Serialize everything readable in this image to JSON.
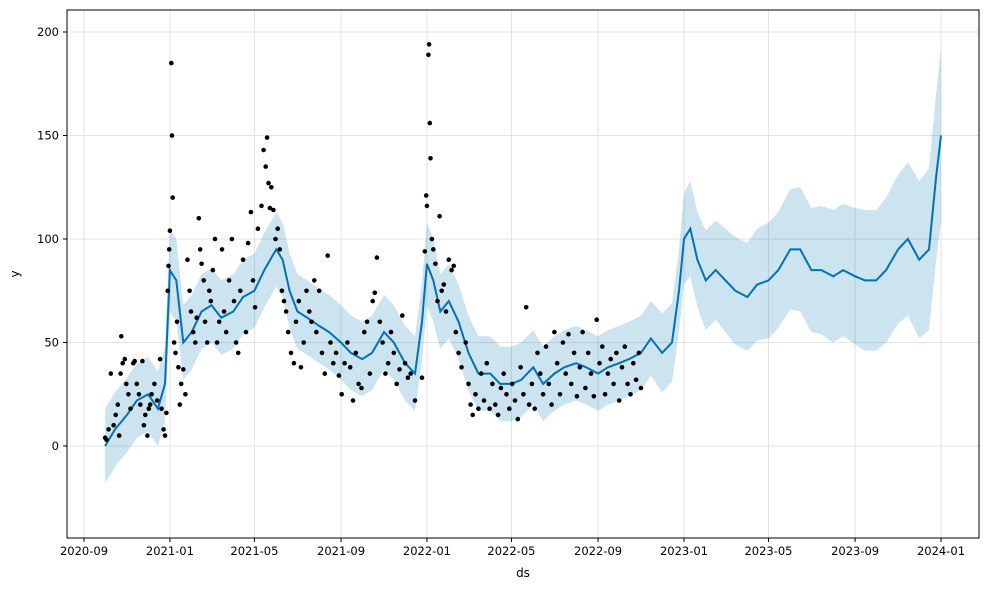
{
  "chart_data": {
    "type": "line",
    "title": "",
    "xlabel": "ds",
    "ylabel": "y",
    "ylim": [
      -44,
      210
    ],
    "xlim": [
      "2020-08-15",
      "2024-02-20"
    ],
    "grid": true,
    "colors": {
      "forecast": "#0072B2",
      "interval": "#0072B2",
      "observed": "#000000"
    },
    "y_ticks": [
      0,
      50,
      100,
      150,
      200
    ],
    "x_ticks": [
      "2020-09",
      "2021-01",
      "2021-05",
      "2021-09",
      "2022-01",
      "2022-05",
      "2022-09",
      "2023-01",
      "2023-05",
      "2023-09",
      "2024-01"
    ],
    "forecast": {
      "name": "yhat",
      "ds": [
        "2020-10-01",
        "2020-10-15",
        "2020-11-01",
        "2020-11-15",
        "2020-12-01",
        "2020-12-15",
        "2020-12-25",
        "2021-01-01",
        "2021-01-10",
        "2021-01-20",
        "2021-02-01",
        "2021-02-15",
        "2021-03-01",
        "2021-03-15",
        "2021-04-01",
        "2021-04-15",
        "2021-05-01",
        "2021-05-15",
        "2021-06-01",
        "2021-06-10",
        "2021-06-20",
        "2021-07-01",
        "2021-07-15",
        "2021-08-01",
        "2021-08-15",
        "2021-09-01",
        "2021-09-15",
        "2021-10-01",
        "2021-10-15",
        "2021-11-01",
        "2021-11-15",
        "2021-12-01",
        "2021-12-15",
        "2021-12-25",
        "2022-01-01",
        "2022-01-10",
        "2022-01-20",
        "2022-02-01",
        "2022-02-15",
        "2022-03-01",
        "2022-03-15",
        "2022-04-01",
        "2022-04-15",
        "2022-05-01",
        "2022-05-15",
        "2022-06-01",
        "2022-06-15",
        "2022-07-01",
        "2022-07-15",
        "2022-08-01",
        "2022-08-15",
        "2022-09-01",
        "2022-09-15",
        "2022-10-01",
        "2022-10-15",
        "2022-11-01",
        "2022-11-15",
        "2022-12-01",
        "2022-12-15",
        "2022-12-25",
        "2023-01-01",
        "2023-01-10",
        "2023-01-20",
        "2023-02-01",
        "2023-02-15",
        "2023-03-01",
        "2023-03-15",
        "2023-04-01",
        "2023-04-15",
        "2023-05-01",
        "2023-05-15",
        "2023-06-01",
        "2023-06-15",
        "2023-07-01",
        "2023-07-15",
        "2023-08-01",
        "2023-08-15",
        "2023-09-01",
        "2023-09-15",
        "2023-10-01",
        "2023-10-15",
        "2023-11-01",
        "2023-11-15",
        "2023-12-01",
        "2023-12-15",
        "2023-12-25",
        "2024-01-01"
      ],
      "yhat": [
        0,
        8,
        15,
        22,
        25,
        18,
        30,
        85,
        80,
        50,
        55,
        65,
        68,
        62,
        65,
        72,
        75,
        85,
        95,
        90,
        75,
        65,
        62,
        58,
        55,
        50,
        45,
        42,
        45,
        55,
        50,
        40,
        35,
        60,
        88,
        80,
        65,
        70,
        60,
        45,
        35,
        35,
        30,
        30,
        32,
        38,
        30,
        35,
        38,
        40,
        38,
        35,
        38,
        40,
        42,
        45,
        52,
        45,
        50,
        75,
        100,
        105,
        90,
        80,
        85,
        80,
        75,
        72,
        78,
        80,
        85,
        95,
        95,
        85,
        85,
        82,
        85,
        82,
        80,
        80,
        85,
        95,
        100,
        90,
        95,
        130,
        150
      ],
      "interval_half_width": [
        18,
        18,
        18,
        18,
        18,
        18,
        18,
        20,
        20,
        18,
        18,
        18,
        18,
        18,
        18,
        18,
        18,
        18,
        18,
        18,
        18,
        18,
        18,
        18,
        18,
        18,
        18,
        18,
        18,
        18,
        18,
        18,
        18,
        19,
        20,
        20,
        18,
        18,
        18,
        18,
        18,
        18,
        18,
        18,
        18,
        18,
        18,
        18,
        18,
        18,
        18,
        18,
        18,
        18,
        18,
        18,
        18,
        19,
        19,
        20,
        22,
        23,
        23,
        24,
        24,
        25,
        26,
        26,
        27,
        28,
        28,
        29,
        30,
        30,
        31,
        32,
        32,
        33,
        34,
        34,
        35,
        36,
        37,
        38,
        39,
        40,
        42
      ]
    },
    "observed": {
      "name": "y",
      "x_origin": "2020-09-01",
      "points": [
        [
          30,
          4
        ],
        [
          32,
          3
        ],
        [
          35,
          8
        ],
        [
          38,
          35
        ],
        [
          42,
          10
        ],
        [
          45,
          15
        ],
        [
          48,
          20
        ],
        [
          50,
          5
        ],
        [
          52,
          35
        ],
        [
          53,
          53
        ],
        [
          55,
          40
        ],
        [
          58,
          42
        ],
        [
          60,
          30
        ],
        [
          63,
          25
        ],
        [
          66,
          18
        ],
        [
          70,
          40
        ],
        [
          72,
          41
        ],
        [
          75,
          30
        ],
        [
          78,
          25
        ],
        [
          80,
          20
        ],
        [
          83,
          41
        ],
        [
          85,
          10
        ],
        [
          87,
          15
        ],
        [
          90,
          5
        ],
        [
          92,
          18
        ],
        [
          94,
          20
        ],
        [
          96,
          25
        ],
        [
          100,
          30
        ],
        [
          104,
          22
        ],
        [
          108,
          42
        ],
        [
          110,
          18
        ],
        [
          113,
          8
        ],
        [
          115,
          5
        ],
        [
          117,
          16
        ],
        [
          119,
          75
        ],
        [
          120,
          87
        ],
        [
          121,
          95
        ],
        [
          122,
          104
        ],
        [
          124,
          185
        ],
        [
          125,
          150
        ],
        [
          126,
          120
        ],
        [
          128,
          50
        ],
        [
          130,
          45
        ],
        [
          132,
          60
        ],
        [
          134,
          38
        ],
        [
          136,
          20
        ],
        [
          138,
          30
        ],
        [
          141,
          37
        ],
        [
          144,
          25
        ],
        [
          147,
          90
        ],
        [
          150,
          75
        ],
        [
          152,
          65
        ],
        [
          155,
          55
        ],
        [
          158,
          50
        ],
        [
          160,
          62
        ],
        [
          163,
          110
        ],
        [
          165,
          95
        ],
        [
          167,
          88
        ],
        [
          170,
          80
        ],
        [
          172,
          60
        ],
        [
          175,
          50
        ],
        [
          178,
          75
        ],
        [
          180,
          70
        ],
        [
          183,
          85
        ],
        [
          186,
          100
        ],
        [
          189,
          50
        ],
        [
          192,
          60
        ],
        [
          196,
          95
        ],
        [
          199,
          65
        ],
        [
          202,
          55
        ],
        [
          206,
          80
        ],
        [
          210,
          100
        ],
        [
          213,
          70
        ],
        [
          216,
          50
        ],
        [
          219,
          45
        ],
        [
          222,
          75
        ],
        [
          226,
          90
        ],
        [
          230,
          55
        ],
        [
          233,
          98
        ],
        [
          237,
          113
        ],
        [
          240,
          80
        ],
        [
          243,
          67
        ],
        [
          247,
          105
        ],
        [
          252,
          116
        ],
        [
          255,
          143
        ],
        [
          258,
          135
        ],
        [
          260,
          149
        ],
        [
          262,
          127
        ],
        [
          264,
          115
        ],
        [
          266,
          125
        ],
        [
          269,
          114
        ],
        [
          272,
          100
        ],
        [
          275,
          105
        ],
        [
          278,
          95
        ],
        [
          281,
          75
        ],
        [
          284,
          70
        ],
        [
          287,
          65
        ],
        [
          290,
          55
        ],
        [
          294,
          45
        ],
        [
          298,
          40
        ],
        [
          301,
          60
        ],
        [
          305,
          70
        ],
        [
          308,
          38
        ],
        [
          312,
          50
        ],
        [
          316,
          75
        ],
        [
          320,
          65
        ],
        [
          323,
          60
        ],
        [
          327,
          80
        ],
        [
          330,
          55
        ],
        [
          334,
          75
        ],
        [
          338,
          45
        ],
        [
          342,
          35
        ],
        [
          346,
          92
        ],
        [
          350,
          50
        ],
        [
          354,
          40
        ],
        [
          358,
          45
        ],
        [
          362,
          34
        ],
        [
          366,
          25
        ],
        [
          370,
          40
        ],
        [
          374,
          50
        ],
        [
          378,
          38
        ],
        [
          382,
          22
        ],
        [
          386,
          45
        ],
        [
          390,
          30
        ],
        [
          394,
          28
        ],
        [
          398,
          55
        ],
        [
          402,
          60
        ],
        [
          406,
          35
        ],
        [
          410,
          70
        ],
        [
          413,
          74
        ],
        [
          416,
          91
        ],
        [
          420,
          60
        ],
        [
          424,
          50
        ],
        [
          428,
          35
        ],
        [
          432,
          40
        ],
        [
          436,
          55
        ],
        [
          440,
          45
        ],
        [
          444,
          30
        ],
        [
          448,
          37
        ],
        [
          452,
          63
        ],
        [
          456,
          40
        ],
        [
          460,
          33
        ],
        [
          464,
          35
        ],
        [
          470,
          22
        ],
        [
          480,
          33
        ],
        [
          484,
          94
        ],
        [
          486,
          121
        ],
        [
          487,
          116
        ],
        [
          489,
          189
        ],
        [
          490,
          194
        ],
        [
          491,
          156
        ],
        [
          492,
          139
        ],
        [
          494,
          100
        ],
        [
          496,
          95
        ],
        [
          499,
          88
        ],
        [
          502,
          70
        ],
        [
          505,
          111
        ],
        [
          508,
          75
        ],
        [
          511,
          78
        ],
        [
          514,
          65
        ],
        [
          518,
          90
        ],
        [
          522,
          85
        ],
        [
          525,
          87
        ],
        [
          528,
          55
        ],
        [
          532,
          45
        ],
        [
          536,
          38
        ],
        [
          542,
          50
        ],
        [
          546,
          30
        ],
        [
          549,
          20
        ],
        [
          552,
          15
        ],
        [
          556,
          25
        ],
        [
          560,
          18
        ],
        [
          564,
          35
        ],
        [
          568,
          22
        ],
        [
          572,
          40
        ],
        [
          576,
          18
        ],
        [
          580,
          30
        ],
        [
          584,
          20
        ],
        [
          588,
          15
        ],
        [
          592,
          28
        ],
        [
          596,
          35
        ],
        [
          600,
          25
        ],
        [
          604,
          18
        ],
        [
          608,
          30
        ],
        [
          612,
          22
        ],
        [
          616,
          13
        ],
        [
          620,
          38
        ],
        [
          624,
          25
        ],
        [
          628,
          67
        ],
        [
          632,
          20
        ],
        [
          636,
          30
        ],
        [
          640,
          18
        ],
        [
          644,
          45
        ],
        [
          648,
          35
        ],
        [
          652,
          25
        ],
        [
          656,
          48
        ],
        [
          660,
          30
        ],
        [
          664,
          20
        ],
        [
          668,
          55
        ],
        [
          672,
          40
        ],
        [
          676,
          25
        ],
        [
          680,
          50
        ],
        [
          684,
          35
        ],
        [
          688,
          54
        ],
        [
          692,
          30
        ],
        [
          696,
          45
        ],
        [
          700,
          24
        ],
        [
          704,
          38
        ],
        [
          708,
          55
        ],
        [
          712,
          28
        ],
        [
          716,
          45
        ],
        [
          720,
          35
        ],
        [
          724,
          24
        ],
        [
          728,
          61
        ],
        [
          732,
          40
        ],
        [
          736,
          48
        ],
        [
          740,
          25
        ],
        [
          744,
          35
        ],
        [
          748,
          42
        ],
        [
          752,
          30
        ],
        [
          756,
          45
        ],
        [
          760,
          22
        ],
        [
          764,
          38
        ],
        [
          768,
          48
        ],
        [
          772,
          30
        ],
        [
          776,
          25
        ],
        [
          780,
          40
        ],
        [
          784,
          32
        ],
        [
          788,
          45
        ],
        [
          791,
          28
        ]
      ]
    }
  }
}
